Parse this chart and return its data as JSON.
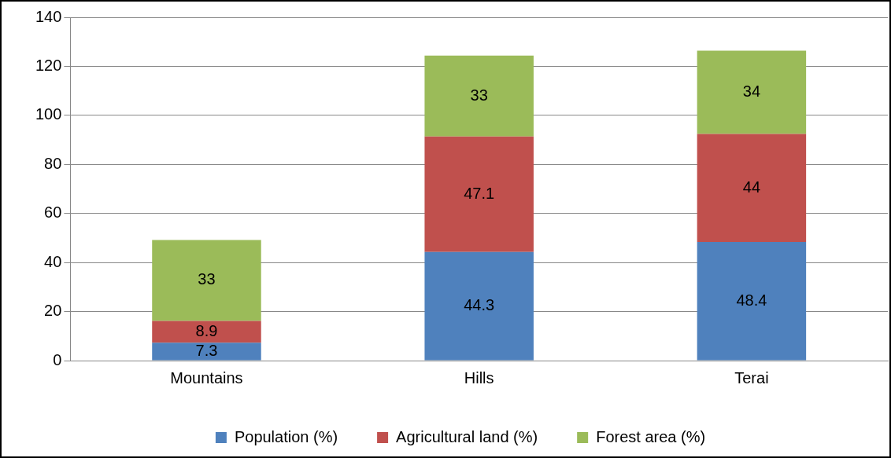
{
  "chart_data": {
    "type": "bar",
    "stacked": true,
    "categories": [
      "Mountains",
      "Hills",
      "Terai"
    ],
    "series": [
      {
        "name": "Population (%)",
        "color": "#4f81bd",
        "values": [
          7.3,
          44.3,
          48.4
        ]
      },
      {
        "name": "Agricultural land (%)",
        "color": "#c0504d",
        "values": [
          8.9,
          47.1,
          44
        ]
      },
      {
        "name": "Forest area (%)",
        "color": "#9bbb59",
        "values": [
          33,
          33,
          34
        ]
      }
    ],
    "ylim": [
      0,
      140
    ],
    "yticks": [
      0,
      20,
      40,
      60,
      80,
      100,
      120,
      140
    ],
    "grid": "y",
    "legend": "bottom",
    "data_labels": true
  }
}
